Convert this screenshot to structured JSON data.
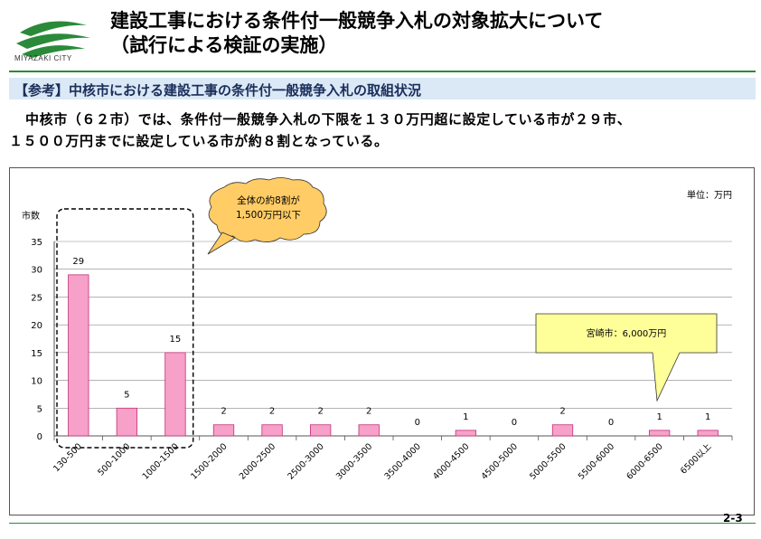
{
  "header": {
    "logo_text": "MIYAZAKI CITY",
    "title_line1": "建設工事における条件付一般競争入札の対象拡大について",
    "title_line2": "（試行による検証の実施）"
  },
  "section": {
    "heading": "【参考】中核市における建設工事の条件付一般競争入札の取組状況"
  },
  "body": {
    "line1": "中核市（６２市）では、条件付一般競争入札の下限を１３０万円超に設定している市が２９市、",
    "line2": "１５００万円までに設定している市が約８割となっている。"
  },
  "colors": {
    "bar": "#f7a0c8",
    "bar_stroke": "#c0307a",
    "callout_yellow": "#ffff99",
    "callout_orange": "#ffcc66",
    "accent_green": "#2a8a3a",
    "section_bg": "#dbe8f6"
  },
  "chart_data": {
    "type": "bar",
    "categories": [
      "130-500",
      "500-1000",
      "1000-1500",
      "1500-2000",
      "2000-2500",
      "2500-3000",
      "3000-3500",
      "3500-4000",
      "4000-4500",
      "4500-5000",
      "5000-5500",
      "5500-6000",
      "6000-6500",
      "6500以上"
    ],
    "values": [
      29,
      5,
      15,
      2,
      2,
      2,
      2,
      0,
      1,
      0,
      2,
      0,
      1,
      1
    ],
    "ylabel": "市数",
    "unit_label": "単位：万円",
    "ylim": [
      0,
      35
    ],
    "yticks": [
      0,
      5,
      10,
      15,
      20,
      25,
      30,
      35
    ],
    "grid": true,
    "annotations": {
      "group_callout": {
        "line1": "全体の約8割が",
        "line2": "1,500万円以下"
      },
      "city_callout": "宮崎市：6,000万円"
    }
  },
  "footer": {
    "page_number": "2-3"
  }
}
